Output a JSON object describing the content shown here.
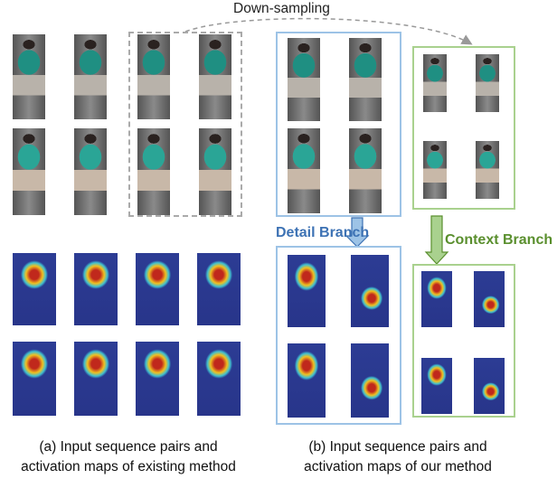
{
  "labels": {
    "downsampling": "Down-sampling",
    "detail_branch": "Detail Branch",
    "context_branch": "Context Branch"
  },
  "captions": {
    "a_line1": "(a) Input sequence pairs and",
    "a_line2": "activation maps of existing method",
    "b_line1": "(b) Input sequence pairs and",
    "b_line2": "activation maps of our method"
  },
  "colors": {
    "detail": "#3d72b4",
    "context": "#5a8f2e",
    "detail_box": "#9dc3e6",
    "context_box": "#a9d18e",
    "dashed": "#999999"
  }
}
